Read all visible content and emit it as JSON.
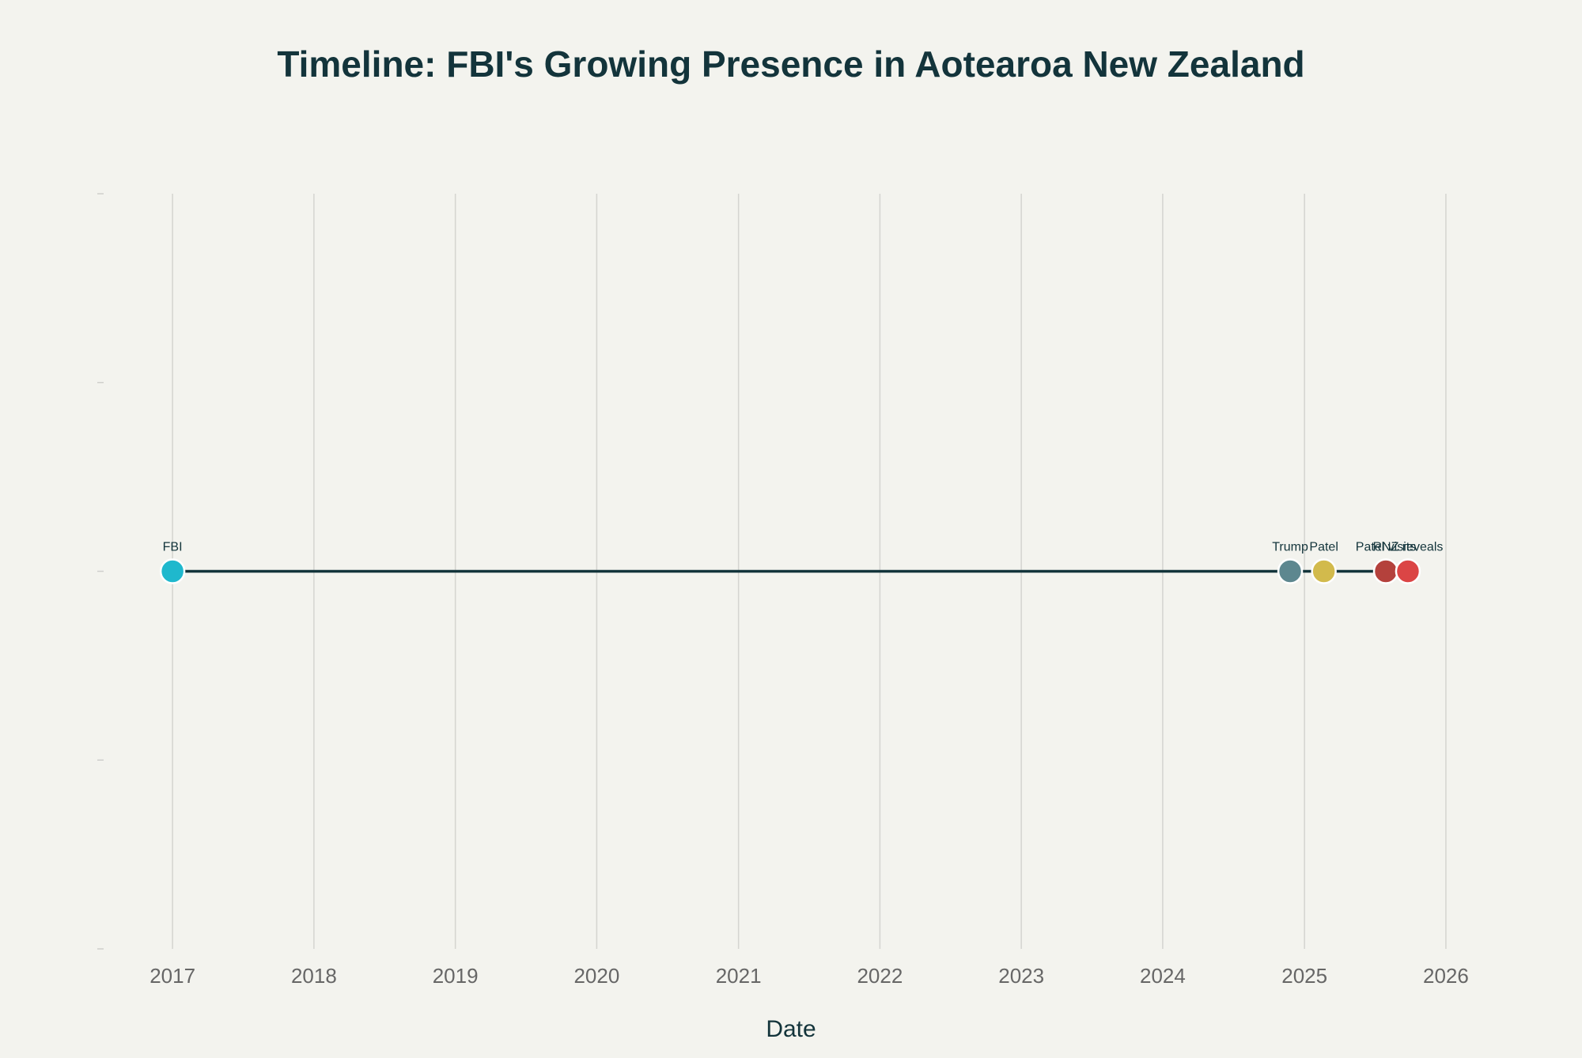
{
  "chart_data": {
    "type": "scatter",
    "title": "Timeline: FBI's Growing Presence in Aotearoa New Zealand",
    "xlabel": "Date",
    "ylabel": "",
    "x_axis": {
      "type": "date",
      "range": [
        "2016-07-01",
        "2026-04-01"
      ],
      "ticks": [
        "2017",
        "2018",
        "2019",
        "2020",
        "2021",
        "2022",
        "2023",
        "2024",
        "2025",
        "2026"
      ]
    },
    "y_axis": {
      "range": [
        -2,
        2
      ],
      "ticks": [
        -2,
        -1,
        0,
        1,
        2
      ],
      "tick_labels_visible": false
    },
    "grid": {
      "x": true,
      "y": false
    },
    "line": {
      "from": "2017-01-01",
      "to": "2025-09-25",
      "y": 0,
      "color": "#13343b"
    },
    "points": [
      {
        "label": "FBI",
        "date": "2017-01-01",
        "y": 0,
        "color": "#1fb8cd"
      },
      {
        "label": "Trump",
        "date": "2024-11-25",
        "y": 0,
        "color": "#5d878f"
      },
      {
        "label": "Patel",
        "date": "2025-02-20",
        "y": 0,
        "color": "#d2ba4c"
      },
      {
        "label": "Patel visits",
        "date": "2025-07-30",
        "y": 0,
        "color": "#b4413c"
      },
      {
        "label": "RNZ reveals",
        "date": "2025-09-25",
        "y": 0,
        "color": "#db4545"
      }
    ]
  }
}
